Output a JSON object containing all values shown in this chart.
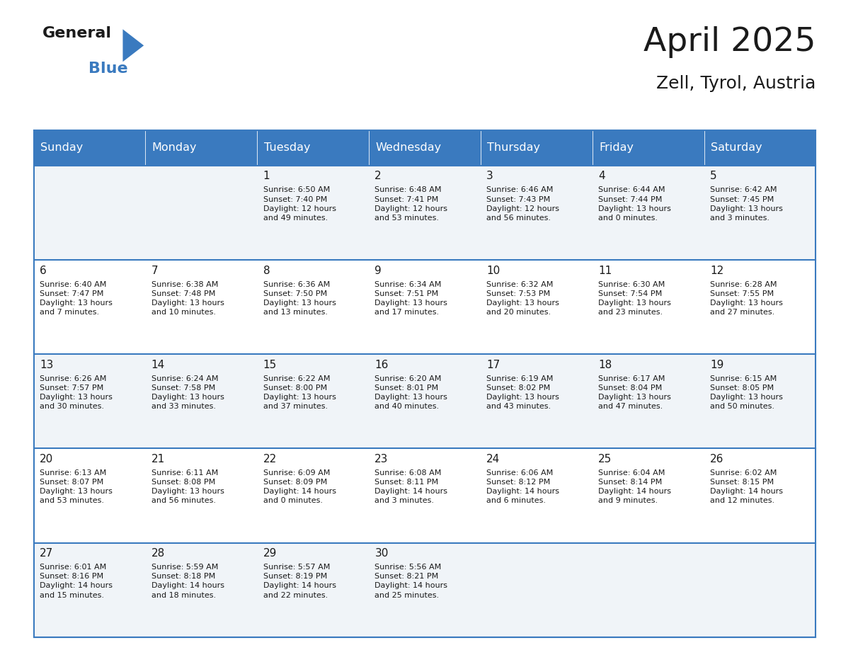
{
  "title": "April 2025",
  "subtitle": "Zell, Tyrol, Austria",
  "header_color": "#3a7abf",
  "header_text_color": "#ffffff",
  "bg_color": "#ffffff",
  "cell_bg_even": "#f0f4f8",
  "cell_bg_odd": "#ffffff",
  "days_of_week": [
    "Sunday",
    "Monday",
    "Tuesday",
    "Wednesday",
    "Thursday",
    "Friday",
    "Saturday"
  ],
  "weeks": [
    [
      {
        "day": "",
        "info": ""
      },
      {
        "day": "",
        "info": ""
      },
      {
        "day": "1",
        "info": "Sunrise: 6:50 AM\nSunset: 7:40 PM\nDaylight: 12 hours\nand 49 minutes."
      },
      {
        "day": "2",
        "info": "Sunrise: 6:48 AM\nSunset: 7:41 PM\nDaylight: 12 hours\nand 53 minutes."
      },
      {
        "day": "3",
        "info": "Sunrise: 6:46 AM\nSunset: 7:43 PM\nDaylight: 12 hours\nand 56 minutes."
      },
      {
        "day": "4",
        "info": "Sunrise: 6:44 AM\nSunset: 7:44 PM\nDaylight: 13 hours\nand 0 minutes."
      },
      {
        "day": "5",
        "info": "Sunrise: 6:42 AM\nSunset: 7:45 PM\nDaylight: 13 hours\nand 3 minutes."
      }
    ],
    [
      {
        "day": "6",
        "info": "Sunrise: 6:40 AM\nSunset: 7:47 PM\nDaylight: 13 hours\nand 7 minutes."
      },
      {
        "day": "7",
        "info": "Sunrise: 6:38 AM\nSunset: 7:48 PM\nDaylight: 13 hours\nand 10 minutes."
      },
      {
        "day": "8",
        "info": "Sunrise: 6:36 AM\nSunset: 7:50 PM\nDaylight: 13 hours\nand 13 minutes."
      },
      {
        "day": "9",
        "info": "Sunrise: 6:34 AM\nSunset: 7:51 PM\nDaylight: 13 hours\nand 17 minutes."
      },
      {
        "day": "10",
        "info": "Sunrise: 6:32 AM\nSunset: 7:53 PM\nDaylight: 13 hours\nand 20 minutes."
      },
      {
        "day": "11",
        "info": "Sunrise: 6:30 AM\nSunset: 7:54 PM\nDaylight: 13 hours\nand 23 minutes."
      },
      {
        "day": "12",
        "info": "Sunrise: 6:28 AM\nSunset: 7:55 PM\nDaylight: 13 hours\nand 27 minutes."
      }
    ],
    [
      {
        "day": "13",
        "info": "Sunrise: 6:26 AM\nSunset: 7:57 PM\nDaylight: 13 hours\nand 30 minutes."
      },
      {
        "day": "14",
        "info": "Sunrise: 6:24 AM\nSunset: 7:58 PM\nDaylight: 13 hours\nand 33 minutes."
      },
      {
        "day": "15",
        "info": "Sunrise: 6:22 AM\nSunset: 8:00 PM\nDaylight: 13 hours\nand 37 minutes."
      },
      {
        "day": "16",
        "info": "Sunrise: 6:20 AM\nSunset: 8:01 PM\nDaylight: 13 hours\nand 40 minutes."
      },
      {
        "day": "17",
        "info": "Sunrise: 6:19 AM\nSunset: 8:02 PM\nDaylight: 13 hours\nand 43 minutes."
      },
      {
        "day": "18",
        "info": "Sunrise: 6:17 AM\nSunset: 8:04 PM\nDaylight: 13 hours\nand 47 minutes."
      },
      {
        "day": "19",
        "info": "Sunrise: 6:15 AM\nSunset: 8:05 PM\nDaylight: 13 hours\nand 50 minutes."
      }
    ],
    [
      {
        "day": "20",
        "info": "Sunrise: 6:13 AM\nSunset: 8:07 PM\nDaylight: 13 hours\nand 53 minutes."
      },
      {
        "day": "21",
        "info": "Sunrise: 6:11 AM\nSunset: 8:08 PM\nDaylight: 13 hours\nand 56 minutes."
      },
      {
        "day": "22",
        "info": "Sunrise: 6:09 AM\nSunset: 8:09 PM\nDaylight: 14 hours\nand 0 minutes."
      },
      {
        "day": "23",
        "info": "Sunrise: 6:08 AM\nSunset: 8:11 PM\nDaylight: 14 hours\nand 3 minutes."
      },
      {
        "day": "24",
        "info": "Sunrise: 6:06 AM\nSunset: 8:12 PM\nDaylight: 14 hours\nand 6 minutes."
      },
      {
        "day": "25",
        "info": "Sunrise: 6:04 AM\nSunset: 8:14 PM\nDaylight: 14 hours\nand 9 minutes."
      },
      {
        "day": "26",
        "info": "Sunrise: 6:02 AM\nSunset: 8:15 PM\nDaylight: 14 hours\nand 12 minutes."
      }
    ],
    [
      {
        "day": "27",
        "info": "Sunrise: 6:01 AM\nSunset: 8:16 PM\nDaylight: 14 hours\nand 15 minutes."
      },
      {
        "day": "28",
        "info": "Sunrise: 5:59 AM\nSunset: 8:18 PM\nDaylight: 14 hours\nand 18 minutes."
      },
      {
        "day": "29",
        "info": "Sunrise: 5:57 AM\nSunset: 8:19 PM\nDaylight: 14 hours\nand 22 minutes."
      },
      {
        "day": "30",
        "info": "Sunrise: 5:56 AM\nSunset: 8:21 PM\nDaylight: 14 hours\nand 25 minutes."
      },
      {
        "day": "",
        "info": ""
      },
      {
        "day": "",
        "info": ""
      },
      {
        "day": "",
        "info": ""
      }
    ]
  ],
  "logo_text_general": "General",
  "logo_text_blue": "Blue",
  "logo_color_general": "#1a1a1a",
  "logo_color_blue": "#3a7abf"
}
